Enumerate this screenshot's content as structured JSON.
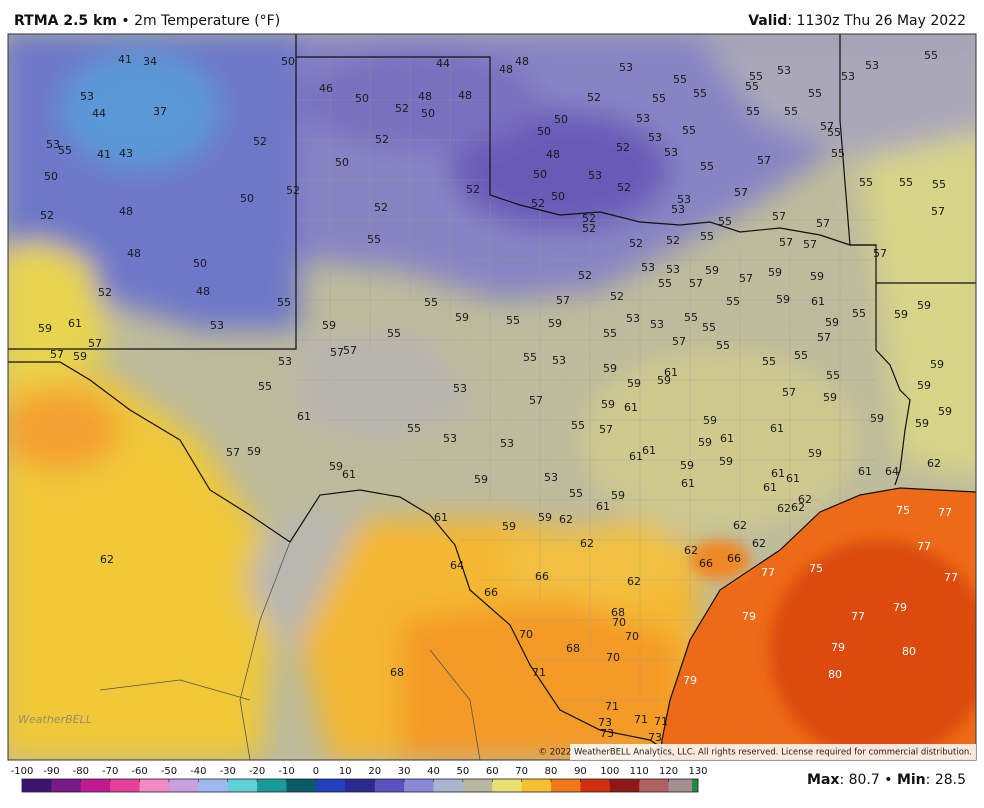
{
  "header": {
    "model": "RTMA 2.5 km",
    "bullet": "•",
    "field": "2m Temperature (°F)",
    "valid_label": "Valid",
    "colon": ":",
    "valid_time": "1130z Thu 26 May 2022"
  },
  "copyright": "© 2022 WeatherBELL Analytics, LLC. All rights reserved. License required for commercial distribution.",
  "logo": "WeatherBELL",
  "station_values": [
    41,
    34,
    53,
    44,
    37,
    53,
    55,
    41,
    43,
    50,
    52,
    48,
    48,
    50,
    52,
    48,
    53,
    59,
    61,
    57,
    57,
    59,
    50,
    44,
    46,
    50,
    52,
    48,
    48,
    50,
    52,
    52,
    50,
    52,
    50,
    52,
    52,
    55,
    48,
    48,
    53,
    55,
    52,
    55,
    53,
    50,
    50,
    53,
    55,
    52,
    48,
    53,
    50,
    53,
    52,
    50,
    52,
    55,
    53,
    53,
    52,
    52,
    55,
    55,
    52,
    52,
    53,
    53,
    53,
    55,
    55,
    55,
    55,
    55,
    55,
    55,
    57,
    55,
    57,
    55,
    57,
    55,
    55,
    55,
    57,
    57,
    57,
    57,
    57,
    57,
    53,
    53,
    55,
    57,
    59,
    57,
    59,
    59,
    52,
    52,
    57,
    55,
    59,
    61,
    55,
    59,
    59,
    55,
    59,
    55,
    59,
    53,
    53,
    55,
    55,
    59,
    57,
    55,
    57,
    59,
    55,
    57,
    57,
    55,
    55,
    55,
    53,
    59,
    53,
    55,
    53,
    59,
    59,
    61,
    55,
    55,
    55,
    59,
    59,
    57,
    59,
    57,
    59,
    61,
    61,
    55,
    53,
    53,
    55,
    57,
    59,
    61,
    59,
    59,
    59,
    61,
    59,
    61,
    61,
    59,
    59,
    59,
    62,
    57,
    59,
    59,
    61,
    59,
    53,
    61,
    61,
    61,
    64,
    61,
    61,
    55,
    59,
    61,
    62,
    62,
    62,
    61,
    59,
    59,
    62,
    62,
    62,
    62,
    62,
    66,
    66,
    62,
    64,
    66,
    62,
    66,
    68,
    70,
    70,
    70,
    68,
    70,
    68,
    71,
    71,
    71,
    73,
    73,
    71,
    73
  ],
  "offshore_values": [
    75,
    77,
    77,
    77,
    75,
    77,
    79,
    77,
    79,
    79,
    80,
    80,
    79
  ],
  "colorbar": {
    "ticks": [
      -100,
      -90,
      -80,
      -70,
      -60,
      -50,
      -40,
      -30,
      -20,
      -10,
      0,
      10,
      20,
      30,
      40,
      50,
      60,
      70,
      80,
      90,
      100,
      110,
      120,
      130
    ],
    "colors": [
      "#3b1470",
      "#7a1a8a",
      "#c01a90",
      "#e8409a",
      "#f08ac0",
      "#c8a0e0",
      "#a0b8f0",
      "#60d0d8",
      "#1a9a9a",
      "#0a5a6a",
      "#2040c0",
      "#2a2a90",
      "#5a50c0",
      "#8a88d8",
      "#a8b4d0",
      "#b8b8a0",
      "#e8e070",
      "#f8c030",
      "#f07818",
      "#d03010",
      "#901818",
      "#b06060",
      "#a09090"
    ],
    "end_color": "#208a40"
  },
  "stats": [
    {
      "label": "Max",
      "value": 80.7
    },
    {
      "label": "Min",
      "value": 28.5
    }
  ]
}
